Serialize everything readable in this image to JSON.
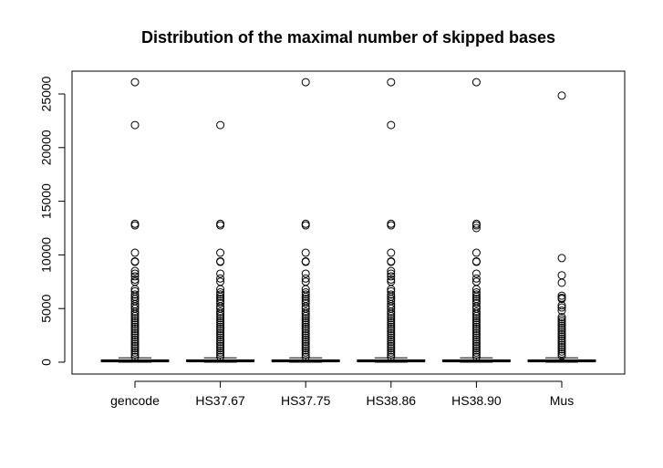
{
  "chart_data": {
    "type": "boxplot",
    "title": "Distribution of the maximal number of skipped bases",
    "xlabel": "",
    "ylabel": "",
    "categories": [
      "gencode",
      "HS37.67",
      "HS37.75",
      "HS38.86",
      "HS38.90",
      "Mus"
    ],
    "yticks": [
      0,
      5000,
      10000,
      15000,
      20000,
      25000
    ],
    "ylim": [
      -1000,
      27000
    ],
    "grid": false,
    "legend": "none",
    "boxes": [
      {
        "name": "gencode",
        "min": 0,
        "q1": 60,
        "median": 120,
        "q3": 200,
        "max": 400,
        "outliers": [
          26100,
          22100,
          12900,
          12750,
          10200,
          9400,
          9350,
          8500,
          8250,
          8000,
          7700,
          7500,
          6800,
          6600,
          6300,
          6100,
          5900,
          5700,
          5400,
          5200,
          5000,
          4700,
          4500,
          4300,
          4100,
          3900,
          3700,
          3500,
          3300,
          3100,
          2900,
          2700,
          2500,
          2300,
          2100,
          1900,
          1700,
          1500,
          1300,
          1100,
          900,
          700,
          500
        ]
      },
      {
        "name": "HS37.67",
        "min": 0,
        "q1": 60,
        "median": 120,
        "q3": 200,
        "max": 400,
        "outliers": [
          22100,
          12900,
          12750,
          10200,
          9400,
          9350,
          8250,
          7800,
          7500,
          6800,
          6500,
          6300,
          6100,
          5900,
          5700,
          5500,
          5200,
          5000,
          4700,
          4500,
          4300,
          4100,
          3900,
          3700,
          3500,
          3300,
          3100,
          2900,
          2700,
          2500,
          2300,
          2100,
          1900,
          1700,
          1500,
          1300,
          1100,
          900,
          700,
          500
        ]
      },
      {
        "name": "HS37.75",
        "min": 0,
        "q1": 60,
        "median": 120,
        "q3": 200,
        "max": 400,
        "outliers": [
          26100,
          12900,
          12750,
          10200,
          9400,
          9350,
          8250,
          7800,
          7500,
          6800,
          6500,
          6300,
          6100,
          5900,
          5700,
          5500,
          5200,
          5000,
          4700,
          4500,
          4300,
          4100,
          3900,
          3700,
          3500,
          3300,
          3100,
          2900,
          2700,
          2500,
          2300,
          2100,
          1900,
          1700,
          1500,
          1300,
          1100,
          900,
          700,
          500
        ]
      },
      {
        "name": "HS38.86",
        "min": 0,
        "q1": 60,
        "median": 120,
        "q3": 200,
        "max": 400,
        "outliers": [
          26100,
          22100,
          12900,
          12750,
          10200,
          9400,
          9350,
          8500,
          8250,
          8000,
          7700,
          7500,
          6800,
          6600,
          6300,
          6100,
          5900,
          5700,
          5400,
          5200,
          5000,
          4700,
          4500,
          4300,
          4100,
          3900,
          3700,
          3500,
          3300,
          3100,
          2900,
          2700,
          2500,
          2300,
          2100,
          1900,
          1700,
          1500,
          1300,
          1100,
          900,
          700,
          500
        ]
      },
      {
        "name": "HS38.90",
        "min": 0,
        "q1": 60,
        "median": 120,
        "q3": 200,
        "max": 400,
        "outliers": [
          26100,
          12900,
          12750,
          12500,
          10200,
          9400,
          9350,
          8250,
          7800,
          7500,
          6800,
          6500,
          6300,
          6100,
          5900,
          5700,
          5500,
          5200,
          5000,
          4700,
          4500,
          4300,
          4100,
          3900,
          3700,
          3500,
          3300,
          3100,
          2900,
          2700,
          2500,
          2300,
          2100,
          1900,
          1700,
          1500,
          1300,
          1100,
          900,
          700,
          500
        ]
      },
      {
        "name": "Mus",
        "min": 0,
        "q1": 60,
        "median": 120,
        "q3": 200,
        "max": 400,
        "outliers": [
          24850,
          9700,
          8100,
          7400,
          6200,
          6000,
          5900,
          5300,
          5100,
          4800,
          4200,
          4000,
          3800,
          3600,
          3400,
          3200,
          3000,
          2800,
          2600,
          2400,
          2200,
          2000,
          1800,
          1600,
          1400,
          1200,
          1000,
          800,
          600
        ]
      }
    ]
  },
  "colors": {
    "line": "#000000",
    "background": "#ffffff"
  }
}
